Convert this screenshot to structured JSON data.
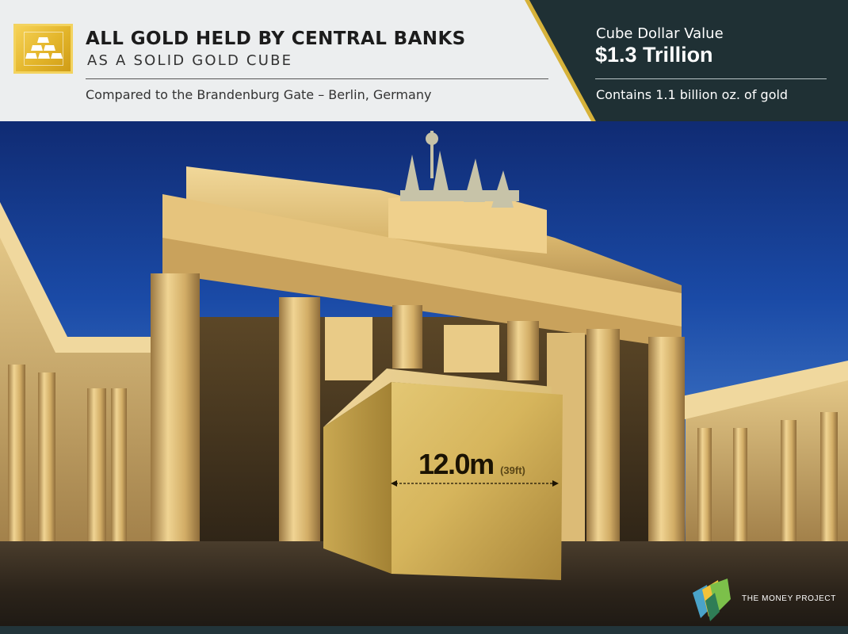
{
  "header": {
    "title": "ALL GOLD HELD BY CENTRAL BANKS",
    "subtitle": "AS A SOLID GOLD CUBE",
    "comparison": "Compared to the Brandenburg Gate – Berlin, Germany",
    "value_label": "Cube Dollar Value",
    "value_amount": "$1.3 Trillion",
    "contains": "Contains 1.1 billion oz. of gold"
  },
  "cube": {
    "size_metric": "12.0m",
    "size_imperial": "(39ft)"
  },
  "credit": {
    "label": "THE MONEY PROJECT"
  },
  "icons": {
    "logo": "gold-bars-icon",
    "credit_logo": "money-project-logo-icon",
    "measure": "double-arrow-icon"
  },
  "colors": {
    "gold": "#e3b52a",
    "header_dark": "#1f3034",
    "header_light": "#eceeef",
    "accent": "#d6b23a",
    "sky": "#1a4aa6"
  }
}
